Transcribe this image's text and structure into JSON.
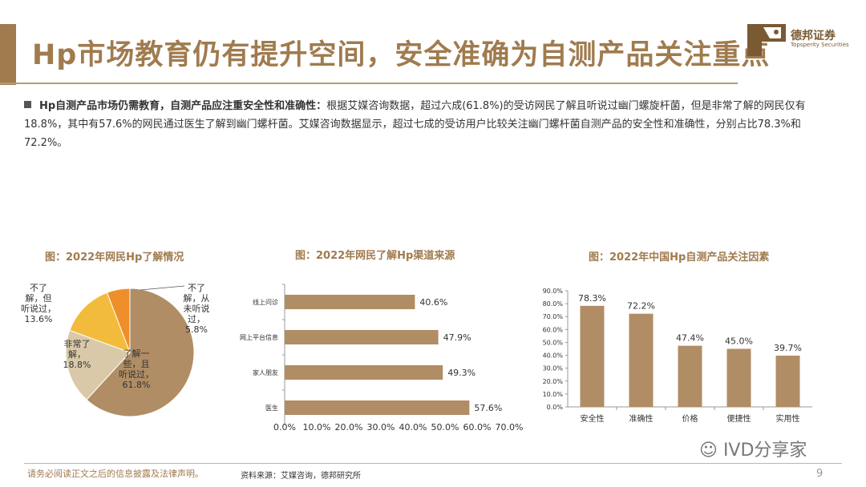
{
  "header": {
    "title": "Hp市场教育仍有提升空间，安全准确为自测产品关注重点",
    "logo_cn": "德邦证券",
    "logo_en": "Topsperity Securities"
  },
  "body": {
    "bold_lead": "Hp自测产品市场仍需教育，自测产品应注重安全性和准确性：",
    "text": "根据艾媒咨询数据，超过六成(61.8%)的受访网民了解且听说过幽门螺旋杆菌，但是非常了解的网民仅有18.8%，其中有57.6%的网民通过医生了解到幽门螺杆菌。艾媒咨询数据显示，超过七成的受访用户比较关注幽门螺杆菌自测产品的安全性和准确性，分别占比78.3%和72.2%。"
  },
  "charts": {
    "pie_title": "图：2022年网民Hp了解情况",
    "hbar_title": "图：2022年网民了解Hp渠道来源",
    "vbar_title": "图：2022年中国Hp自测产品关注因素"
  },
  "chart_data": [
    {
      "type": "pie",
      "title": "图：2022年网民Hp了解情况",
      "slices": [
        {
          "label": "了解一些，且听说过，",
          "value": 61.8,
          "display": "61.8%",
          "color": "#b08d64"
        },
        {
          "label": "非常了解，",
          "value": 18.8,
          "display": "18.8%",
          "color": "#d9c9a8"
        },
        {
          "label": "不了解，但听说过，",
          "value": 13.6,
          "display": "13.6%",
          "color": "#f2bb3c"
        },
        {
          "label": "不了解，从未听说过，",
          "value": 5.8,
          "display": "5.8%",
          "color": "#ef8f2c"
        }
      ]
    },
    {
      "type": "bar",
      "orientation": "horizontal",
      "title": "图：2022年网民了解Hp渠道来源",
      "categories": [
        "线上问诊",
        "网上平台信息",
        "家人朋友",
        "医生"
      ],
      "values": [
        40.6,
        47.9,
        49.3,
        57.6
      ],
      "value_labels": [
        "40.6%",
        "47.9%",
        "49.3%",
        "57.6%"
      ],
      "xlim": [
        0,
        70
      ],
      "ticks": [
        "0.0%",
        "10.0%",
        "20.0%",
        "30.0%",
        "40.0%",
        "50.0%",
        "60.0%",
        "70.0%"
      ],
      "color": "#b08d64"
    },
    {
      "type": "bar",
      "orientation": "vertical",
      "title": "图：2022年中国Hp自测产品关注因素",
      "categories": [
        "安全性",
        "准确性",
        "价格",
        "便捷性",
        "实用性"
      ],
      "values": [
        78.3,
        72.2,
        47.4,
        45.0,
        39.7
      ],
      "value_labels": [
        "78.3%",
        "72.2%",
        "47.4%",
        "45.0%",
        "39.7%"
      ],
      "ylim": [
        0,
        90
      ],
      "ticks": [
        "0.0%",
        "10.0%",
        "20.0%",
        "30.0%",
        "40.0%",
        "50.0%",
        "60.0%",
        "70.0%",
        "80.0%",
        "90.0%"
      ],
      "color": "#b08d64"
    }
  ],
  "footer": {
    "disclaimer": "请务必阅读正文之后的信息披露及法律声明。",
    "source": "资料来源：艾媒咨询，德邦研究所",
    "page": "9",
    "watermark": "IVD分享家"
  }
}
